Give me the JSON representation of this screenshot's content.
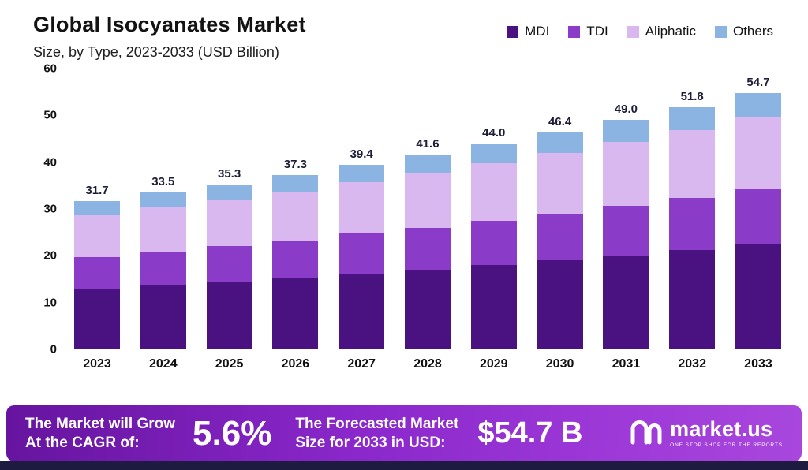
{
  "header": {
    "title": "Global Isocyanates Market",
    "subtitle": "Size, by Type, 2023-2033 (USD Billion)"
  },
  "chart_data": {
    "type": "bar",
    "stacked": true,
    "title": "Global Isocyanates Market Size, by Type, 2023-2033 (USD Billion)",
    "categories": [
      "2023",
      "2024",
      "2025",
      "2026",
      "2027",
      "2028",
      "2029",
      "2030",
      "2031",
      "2032",
      "2033"
    ],
    "series": [
      {
        "name": "MDI",
        "color": "#4a1180",
        "values": [
          13.0,
          13.7,
          14.5,
          15.3,
          16.2,
          17.1,
          18.0,
          19.0,
          20.1,
          21.2,
          22.4
        ]
      },
      {
        "name": "TDI",
        "color": "#8a3cc8",
        "values": [
          6.8,
          7.2,
          7.6,
          8.0,
          8.5,
          8.9,
          9.5,
          10.0,
          10.5,
          11.1,
          11.8
        ]
      },
      {
        "name": "Aliphatic",
        "color": "#d9b8f0",
        "values": [
          8.9,
          9.4,
          9.9,
          10.4,
          11.0,
          11.6,
          12.3,
          13.0,
          13.7,
          14.5,
          15.3
        ]
      },
      {
        "name": "Others",
        "color": "#8cb4e2",
        "values": [
          3.0,
          3.2,
          3.3,
          3.6,
          3.7,
          4.0,
          4.2,
          4.4,
          4.7,
          5.0,
          5.2
        ]
      }
    ],
    "totals_display": [
      "31.7",
      "33.5",
      "35.3",
      "37.3",
      "39.4",
      "41.6",
      "44.0",
      "46.4",
      "49.0",
      "51.8",
      "54.7"
    ],
    "xlabel": "",
    "ylabel": "",
    "ylim": [
      0,
      60
    ],
    "yticks": [
      0,
      10,
      20,
      30,
      40,
      50,
      60
    ],
    "grid": false,
    "legend_position": "top-right"
  },
  "banner": {
    "cagr_label_line1": "The Market will Grow",
    "cagr_label_line2": "At the CAGR of:",
    "cagr_value": "5.6%",
    "forecast_label_line1": "The Forecasted Market",
    "forecast_label_line2": "Size for 2033 in USD:",
    "forecast_value": "$54.7 B",
    "brand_name": "market.us",
    "brand_tagline": "ONE STOP SHOP FOR THE REPORTS"
  }
}
